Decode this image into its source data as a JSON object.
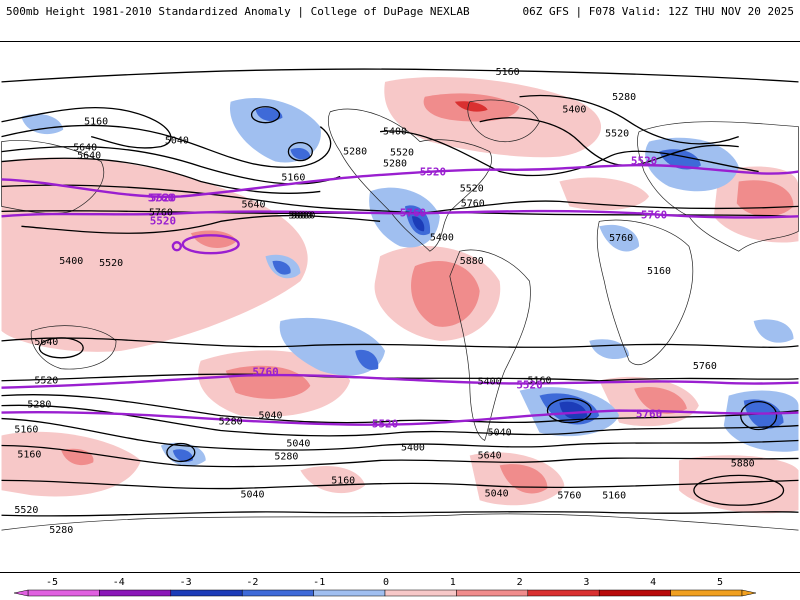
{
  "header": {
    "title": "500mb Height 1981-2010 Standardized Anomaly | College of DuPage NEXLAB",
    "run": "06Z GFS | F078 Valid: 12Z THU NOV 20 2025"
  },
  "colors": {
    "purple_line": "#9a1fd0",
    "contour": "#000000",
    "coast": "#222222"
  },
  "contour_labels": [
    "5160",
    "5400",
    "5280",
    "5520",
    "5160",
    "5040",
    "5400",
    "5520",
    "5640",
    "5280",
    "5160",
    "5760",
    "5880",
    "5640",
    "5400",
    "5520",
    "5280",
    "5640",
    "5760",
    "5880",
    "5760",
    "5880",
    "5160",
    "5400",
    "5520",
    "5640",
    "5760",
    "5520",
    "5400",
    "5280",
    "5160",
    "5040",
    "5280",
    "5160",
    "5040",
    "5160",
    "5040",
    "5640",
    "5400",
    "5280",
    "5160",
    "5040",
    "5760",
    "5520",
    "5280",
    "5040",
    "5160",
    "5880"
  ],
  "purple_labels": [
    "5520",
    "5760",
    "5520",
    "5760",
    "5520",
    "5760",
    "5760",
    "5520",
    "5760",
    "5520",
    "5520"
  ],
  "colorbar": {
    "ticks": [
      "-5",
      "-4",
      "-3",
      "-2",
      "-1",
      "0",
      "1",
      "2",
      "3",
      "4",
      "5"
    ],
    "colors": [
      "#e060e0",
      "#8a17b8",
      "#1c3cb8",
      "#3e6ad8",
      "#a0bff0",
      "#ffffff",
      "#f7c8c8",
      "#f08c8c",
      "#d93030",
      "#b80a0a",
      "#f0a020"
    ]
  }
}
